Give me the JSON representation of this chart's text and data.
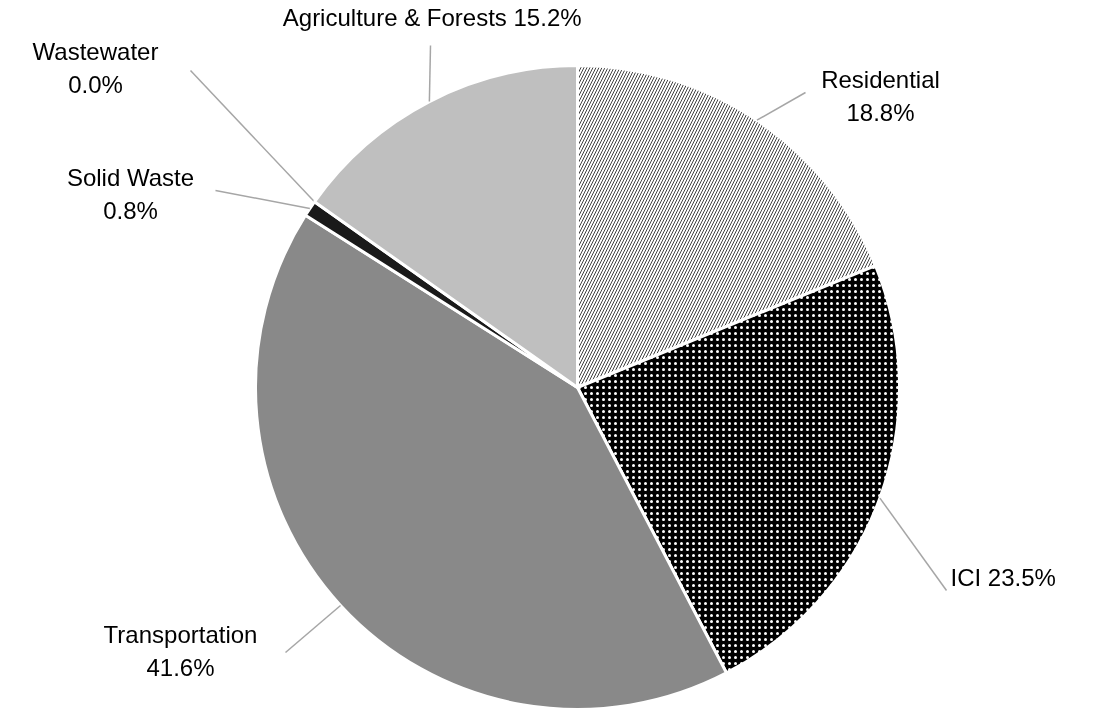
{
  "chart_data": {
    "type": "pie",
    "categories": [
      "Residential",
      "ICI",
      "Transportation",
      "Solid Waste",
      "Wastewater",
      "Agriculture & Forests"
    ],
    "values": [
      18.8,
      23.5,
      41.6,
      0.8,
      0.0,
      15.2
    ],
    "value_labels": [
      "18.8%",
      "23.5%",
      "41.6%",
      "0.8%",
      "0.0%",
      "15.2%"
    ],
    "colors": [
      "#ffffff",
      "#000000",
      "#898989",
      "#1a1a1a",
      "#595959",
      "#bfbfbf"
    ],
    "data_labels": true
  }
}
